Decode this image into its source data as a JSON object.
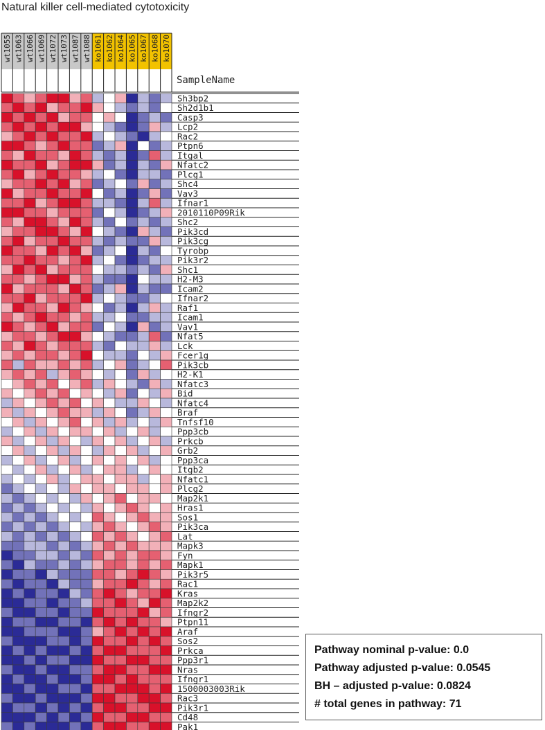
{
  "title": "Natural killer cell-mediated cytotoxicity",
  "stats": [
    "Pathway nominal p-value: 0.0",
    "Pathway adjusted p-value: 0.0545",
    "BH – adjusted p-value: 0.0824",
    "# total genes in pathway: 71"
  ],
  "chart_data": {
    "type": "heatmap",
    "column_header_label": "SampleName",
    "columns": [
      "wt1055",
      "wt1063",
      "wt1066",
      "wt1069",
      "wt1072",
      "wt1073",
      "wt1087",
      "wt1088",
      "ko1061",
      "ko1062",
      "ko1064",
      "ko1065",
      "ko1067",
      "ko1068",
      "ko1070"
    ],
    "column_group_colors": {
      "wt": "#c8c8c8",
      "ko": "#f2c200"
    },
    "rows": [
      "Sh3bp2",
      "Sh2d1b1",
      "Casp3",
      "Lcp2",
      "Rac2",
      "Ptpn6",
      "Itgal",
      "Nfatc2",
      "Plcg1",
      "Shc4",
      "Vav3",
      "Ifnar1",
      "2010110P09Rik",
      "Shc2",
      "Pik3cd",
      "Pik3cg",
      "Tyrobp",
      "Pik3r2",
      "Shc1",
      "H2-M3",
      "Icam2",
      "Ifnar2",
      "Raf1",
      "Icam1",
      "Vav1",
      "Nfat5",
      "Lck",
      "Fcer1g",
      "Pik3cb",
      "H2-K1",
      "Nfatc3",
      "Bid",
      "Nfatc4",
      "Braf",
      "Tnfsf10",
      "Ppp3cb",
      "Prkcb",
      "Grb2",
      "Ppp3ca",
      "Itgb2",
      "Nfatc1",
      "Plcg2",
      "Map2k1",
      "Hras1",
      "Sos1",
      "Pik3ca",
      "Lat",
      "Mapk3",
      "Fyn",
      "Mapk1",
      "Pik3r5",
      "Rac1",
      "Kras",
      "Map2k2",
      "Ifngr2",
      "Ptpn11",
      "Araf",
      "Sos2",
      "Prkca",
      "Ppp3r1",
      "Nras",
      "Ifngr1",
      "1500003003Rik",
      "Rac3",
      "Pik3r1",
      "Cd48",
      "Pak1"
    ],
    "color_scale": {
      "low": "#2b2b96",
      "mid": "#ffffff",
      "high": "#d8112a",
      "range": [
        -3,
        3
      ]
    },
    "values": [
      [
        3,
        2,
        1,
        2,
        3,
        3,
        1,
        2,
        -1,
        0,
        1,
        -3,
        -1,
        -2,
        -1
      ],
      [
        2,
        3,
        2,
        3,
        1,
        2,
        2,
        3,
        1,
        0,
        -1,
        -2,
        -1,
        -2,
        0
      ],
      [
        3,
        2,
        3,
        2,
        3,
        1,
        2,
        2,
        0,
        1,
        0,
        -3,
        -2,
        -1,
        -2
      ],
      [
        2,
        3,
        2,
        3,
        2,
        3,
        3,
        1,
        0,
        -1,
        -2,
        -3,
        -2,
        1,
        -1
      ],
      [
        1,
        2,
        3,
        2,
        3,
        2,
        2,
        3,
        -1,
        0,
        -1,
        -2,
        -3,
        -1,
        0
      ],
      [
        3,
        3,
        2,
        1,
        2,
        3,
        2,
        2,
        -2,
        -1,
        1,
        -3,
        0,
        -2,
        -1
      ],
      [
        2,
        1,
        3,
        2,
        2,
        1,
        3,
        2,
        -1,
        -2,
        -1,
        -3,
        -2,
        2,
        -1
      ],
      [
        3,
        2,
        2,
        3,
        1,
        2,
        3,
        3,
        1,
        -2,
        -1,
        -3,
        -1,
        -2,
        1
      ],
      [
        2,
        3,
        1,
        2,
        3,
        2,
        2,
        1,
        -1,
        0,
        -2,
        -3,
        -1,
        -1,
        -2
      ],
      [
        1,
        2,
        2,
        3,
        2,
        3,
        1,
        2,
        -2,
        -1,
        0,
        -2,
        1,
        -2,
        -1
      ],
      [
        3,
        1,
        2,
        2,
        3,
        2,
        2,
        3,
        0,
        -2,
        -1,
        -3,
        -2,
        1,
        -2
      ],
      [
        2,
        2,
        3,
        1,
        2,
        3,
        3,
        2,
        -1,
        -1,
        -2,
        -3,
        -1,
        2,
        -1
      ],
      [
        3,
        3,
        2,
        2,
        1,
        2,
        2,
        2,
        -2,
        0,
        -1,
        -3,
        -2,
        -1,
        1
      ],
      [
        2,
        1,
        3,
        3,
        2,
        1,
        3,
        2,
        -1,
        -2,
        0,
        -2,
        -1,
        -2,
        -1
      ],
      [
        1,
        2,
        2,
        3,
        3,
        2,
        1,
        3,
        0,
        -1,
        -2,
        -3,
        1,
        -1,
        -2
      ],
      [
        2,
        3,
        1,
        2,
        2,
        3,
        2,
        2,
        -1,
        -2,
        -1,
        -2,
        -2,
        1,
        -1
      ],
      [
        3,
        2,
        2,
        1,
        3,
        2,
        3,
        1,
        -2,
        -1,
        0,
        -3,
        -1,
        -2,
        0
      ],
      [
        2,
        2,
        3,
        2,
        2,
        1,
        2,
        3,
        -1,
        0,
        -2,
        -3,
        -2,
        -1,
        -1
      ],
      [
        1,
        3,
        2,
        3,
        1,
        2,
        2,
        2,
        0,
        -1,
        -1,
        -2,
        -1,
        -2,
        1
      ],
      [
        2,
        2,
        1,
        2,
        3,
        3,
        1,
        2,
        -1,
        -2,
        -2,
        -3,
        0,
        -1,
        -1
      ],
      [
        3,
        1,
        2,
        2,
        2,
        1,
        3,
        2,
        -2,
        -1,
        1,
        -3,
        -1,
        -2,
        -2
      ],
      [
        2,
        2,
        3,
        1,
        2,
        2,
        2,
        3,
        -1,
        0,
        -1,
        -2,
        -2,
        -1,
        0
      ],
      [
        1,
        3,
        2,
        2,
        1,
        3,
        2,
        1,
        0,
        -2,
        -1,
        -3,
        -1,
        1,
        -1
      ],
      [
        2,
        1,
        2,
        3,
        2,
        2,
        1,
        2,
        -1,
        -1,
        0,
        -2,
        -2,
        -1,
        -1
      ],
      [
        3,
        2,
        1,
        2,
        3,
        1,
        2,
        2,
        -2,
        0,
        -1,
        -3,
        1,
        -2,
        -1
      ],
      [
        1,
        2,
        2,
        1,
        2,
        3,
        3,
        1,
        0,
        -1,
        -2,
        -2,
        -1,
        2,
        -2
      ],
      [
        2,
        1,
        3,
        2,
        1,
        2,
        2,
        2,
        -1,
        -2,
        0,
        -1,
        -1,
        1,
        -1
      ],
      [
        1,
        2,
        1,
        2,
        2,
        1,
        2,
        3,
        0,
        -1,
        -1,
        -2,
        0,
        -1,
        1
      ],
      [
        2,
        -1,
        2,
        1,
        1,
        2,
        1,
        2,
        -1,
        0,
        1,
        -2,
        -1,
        0,
        2
      ],
      [
        1,
        2,
        1,
        2,
        -1,
        1,
        2,
        1,
        0,
        -1,
        0,
        -2,
        1,
        -1,
        0
      ],
      [
        0,
        1,
        2,
        1,
        2,
        0,
        1,
        2,
        -1,
        1,
        0,
        -1,
        -2,
        1,
        -1
      ],
      [
        1,
        0,
        1,
        2,
        1,
        2,
        0,
        1,
        0,
        -1,
        1,
        -2,
        0,
        -1,
        1
      ],
      [
        -1,
        1,
        0,
        1,
        2,
        1,
        2,
        0,
        1,
        0,
        -1,
        -1,
        1,
        0,
        -1
      ],
      [
        1,
        -1,
        1,
        0,
        1,
        2,
        1,
        1,
        -1,
        1,
        0,
        -2,
        -1,
        1,
        0
      ],
      [
        0,
        1,
        -1,
        1,
        0,
        1,
        2,
        0,
        1,
        -1,
        1,
        -1,
        0,
        -1,
        1
      ],
      [
        -1,
        0,
        1,
        -1,
        1,
        0,
        1,
        1,
        0,
        1,
        -1,
        0,
        1,
        -1,
        0
      ],
      [
        1,
        -1,
        0,
        1,
        -1,
        1,
        0,
        -1,
        1,
        0,
        1,
        -1,
        0,
        1,
        -1
      ],
      [
        0,
        1,
        -1,
        0,
        1,
        -1,
        1,
        0,
        -1,
        1,
        0,
        1,
        -1,
        0,
        1
      ],
      [
        -1,
        0,
        1,
        -1,
        0,
        1,
        -1,
        0,
        1,
        0,
        1,
        0,
        1,
        -1,
        0
      ],
      [
        0,
        -1,
        0,
        1,
        -1,
        0,
        1,
        -1,
        0,
        1,
        1,
        -1,
        0,
        1,
        0
      ],
      [
        -1,
        0,
        -1,
        0,
        1,
        -1,
        0,
        1,
        1,
        0,
        1,
        1,
        -1,
        0,
        1
      ],
      [
        -2,
        -1,
        0,
        -1,
        0,
        -1,
        1,
        0,
        1,
        1,
        0,
        1,
        1,
        0,
        1
      ],
      [
        -1,
        -2,
        -1,
        0,
        -1,
        0,
        -1,
        1,
        0,
        1,
        2,
        0,
        1,
        1,
        0
      ],
      [
        -2,
        -1,
        -2,
        -1,
        0,
        -1,
        0,
        -1,
        1,
        0,
        1,
        2,
        1,
        0,
        1
      ],
      [
        -1,
        -2,
        -1,
        -2,
        -1,
        0,
        -1,
        0,
        2,
        1,
        0,
        1,
        2,
        1,
        1
      ],
      [
        -2,
        -1,
        -2,
        -1,
        -2,
        -1,
        0,
        -1,
        1,
        2,
        1,
        0,
        1,
        2,
        1
      ],
      [
        -1,
        -2,
        -1,
        -2,
        -1,
        -2,
        -1,
        0,
        2,
        1,
        2,
        1,
        0,
        1,
        2
      ],
      [
        -2,
        -2,
        -1,
        -1,
        -2,
        -1,
        -2,
        -1,
        1,
        2,
        1,
        2,
        1,
        1,
        1
      ],
      [
        -3,
        -2,
        -2,
        -1,
        -1,
        -2,
        -1,
        -2,
        2,
        1,
        2,
        1,
        2,
        2,
        1
      ],
      [
        -2,
        -3,
        -1,
        -2,
        -2,
        -1,
        -2,
        -1,
        1,
        2,
        2,
        1,
        2,
        1,
        2
      ],
      [
        -3,
        -2,
        -2,
        -3,
        -1,
        -2,
        -2,
        -2,
        2,
        2,
        1,
        2,
        3,
        2,
        1
      ],
      [
        -2,
        -3,
        -2,
        -2,
        -3,
        -1,
        -2,
        -2,
        1,
        2,
        2,
        3,
        2,
        1,
        2
      ],
      [
        -3,
        -2,
        -3,
        -2,
        -2,
        -3,
        -1,
        -2,
        2,
        3,
        2,
        1,
        2,
        2,
        3
      ],
      [
        -3,
        -3,
        -2,
        -2,
        -3,
        -2,
        -2,
        -1,
        2,
        2,
        3,
        2,
        1,
        3,
        2
      ],
      [
        -2,
        -3,
        -3,
        -2,
        -2,
        -3,
        -2,
        -2,
        3,
        2,
        2,
        2,
        3,
        1,
        2
      ],
      [
        -3,
        -2,
        -2,
        -3,
        -3,
        -2,
        -2,
        -3,
        2,
        3,
        2,
        3,
        2,
        2,
        1
      ],
      [
        -3,
        -3,
        -2,
        -2,
        -2,
        -3,
        -3,
        -2,
        1,
        2,
        3,
        2,
        3,
        2,
        3
      ],
      [
        -2,
        -3,
        -3,
        -3,
        -2,
        -2,
        -3,
        -2,
        3,
        2,
        2,
        3,
        2,
        3,
        2
      ],
      [
        -3,
        -2,
        -3,
        -2,
        -3,
        -3,
        -2,
        -3,
        2,
        3,
        3,
        2,
        2,
        2,
        3
      ],
      [
        -3,
        -3,
        -2,
        -3,
        -2,
        -2,
        -3,
        -3,
        3,
        2,
        2,
        3,
        3,
        2,
        2
      ],
      [
        -2,
        -3,
        -3,
        -2,
        -3,
        -3,
        -2,
        -2,
        2,
        3,
        3,
        2,
        2,
        3,
        3
      ],
      [
        -3,
        -2,
        -3,
        -3,
        -2,
        -3,
        -3,
        -2,
        3,
        3,
        2,
        3,
        2,
        2,
        2
      ],
      [
        -3,
        -3,
        -2,
        -3,
        -3,
        -2,
        -2,
        -3,
        2,
        2,
        3,
        3,
        3,
        2,
        3
      ],
      [
        -2,
        -3,
        -3,
        -2,
        -3,
        -3,
        -3,
        -2,
        3,
        3,
        2,
        2,
        3,
        3,
        2
      ],
      [
        -3,
        -2,
        -2,
        -3,
        -2,
        -3,
        -2,
        -3,
        2,
        3,
        3,
        2,
        2,
        3,
        3
      ],
      [
        -3,
        -3,
        -3,
        -2,
        -3,
        -2,
        -3,
        -2,
        3,
        2,
        2,
        3,
        3,
        2,
        2
      ],
      [
        -2,
        -3,
        -2,
        -3,
        -3,
        -3,
        -2,
        -3,
        2,
        3,
        3,
        2,
        2,
        3,
        3
      ]
    ]
  }
}
